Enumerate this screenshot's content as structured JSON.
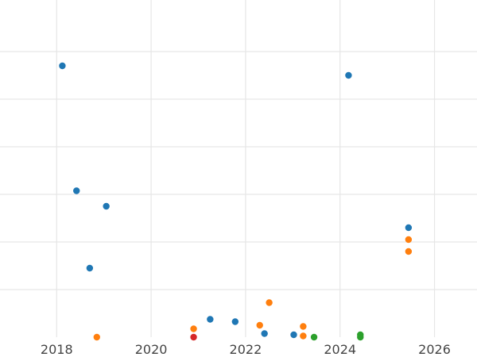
{
  "chart_data": {
    "type": "scatter",
    "title": "",
    "xlabel": "",
    "ylabel": "",
    "grid": true,
    "xlim": [
      2016.8,
      2026.9
    ],
    "ylim": [
      0,
      14
    ],
    "x_ticks": [
      2018,
      2020,
      2022,
      2024,
      2026
    ],
    "x_tick_labels": [
      "2018",
      "2020",
      "2022",
      "2024",
      "2026"
    ],
    "y_gridlines": [
      2,
      4,
      6,
      8,
      10,
      12
    ],
    "y_tick_labels": [],
    "colors": {
      "blue": "#1f77b4",
      "orange": "#ff7f0e",
      "green": "#2ca02c",
      "red": "#d62728",
      "grid": "#e6e6e6"
    },
    "series": [
      {
        "color": "blue",
        "points": [
          {
            "x": 2018.12,
            "y": 11.4
          },
          {
            "x": 2018.42,
            "y": 6.15
          },
          {
            "x": 2019.05,
            "y": 5.5
          },
          {
            "x": 2018.7,
            "y": 2.9
          },
          {
            "x": 2024.18,
            "y": 11.0
          },
          {
            "x": 2025.45,
            "y": 4.6
          },
          {
            "x": 2021.25,
            "y": 0.75
          },
          {
            "x": 2021.78,
            "y": 0.65
          },
          {
            "x": 2022.4,
            "y": 0.15
          },
          {
            "x": 2023.02,
            "y": 0.1
          }
        ]
      },
      {
        "color": "orange",
        "points": [
          {
            "x": 2018.85,
            "y": 0.0
          },
          {
            "x": 2020.9,
            "y": 0.35
          },
          {
            "x": 2022.3,
            "y": 0.5
          },
          {
            "x": 2022.5,
            "y": 1.45
          },
          {
            "x": 2023.22,
            "y": 0.45
          },
          {
            "x": 2023.22,
            "y": 0.05
          },
          {
            "x": 2025.45,
            "y": 4.1
          },
          {
            "x": 2025.45,
            "y": 3.6
          }
        ]
      },
      {
        "color": "green",
        "points": [
          {
            "x": 2023.45,
            "y": 0.0
          },
          {
            "x": 2024.43,
            "y": 0.1
          },
          {
            "x": 2024.43,
            "y": 0.0
          }
        ]
      },
      {
        "color": "red",
        "points": [
          {
            "x": 2020.9,
            "y": 0.0
          }
        ]
      }
    ]
  }
}
